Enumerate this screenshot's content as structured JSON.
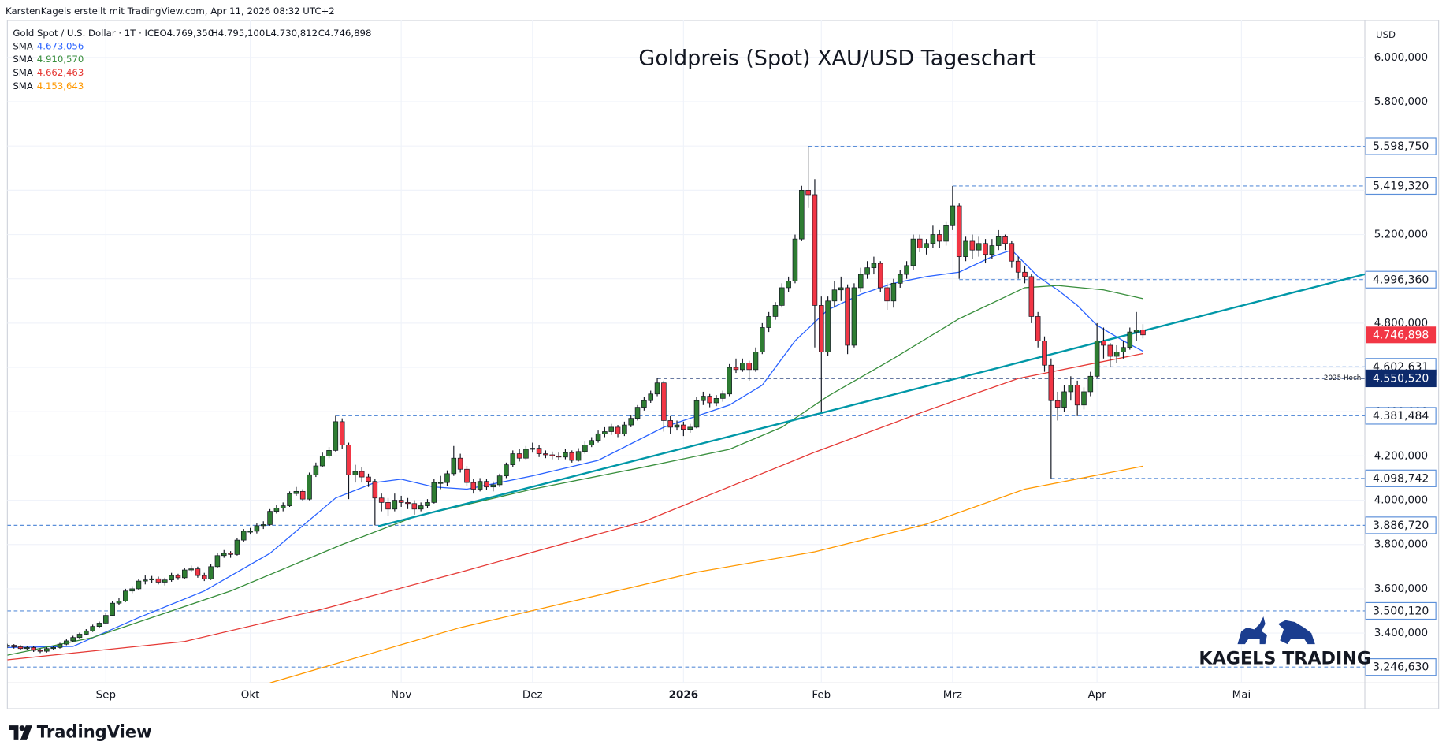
{
  "chart_data": {
    "type": "candlestick",
    "title": "Goldpreis (Spot) XAU/USD Tageschart",
    "watermark": "KarstenKagels erstellt mit TradingView.com, Apr 11, 2026 08:32 UTC+2",
    "symbol": "Gold Spot / U.S. Dollar · 1T · ICE",
    "ohlc_header": [
      {
        "value": 4769.35,
        "label": "O4.769,350"
      },
      {
        "value": 4795.1,
        "label": "H4.795,100"
      },
      {
        "value": 4730.812,
        "label": "L4.730,812"
      },
      {
        "value": 4746.898,
        "label": "C4.746,898"
      }
    ],
    "currency": "USD",
    "branding": "TradingView",
    "logo_text": "KAGELS TRADING",
    "grid": true,
    "up_color": "#2e7d32",
    "down_color": "#f23645",
    "xlim": [
      0,
      206.8
    ],
    "xticks": [
      {
        "value": 15,
        "label": "Sep"
      },
      {
        "value": 37,
        "label": "Okt"
      },
      {
        "value": 60,
        "label": "Nov"
      },
      {
        "value": 80,
        "label": "Dez"
      },
      {
        "value": 103,
        "label": "2026",
        "bold": true
      },
      {
        "value": 124,
        "label": "Feb"
      },
      {
        "value": 144,
        "label": "Mrz"
      },
      {
        "value": 166,
        "label": "Apr"
      },
      {
        "value": 188,
        "label": "Mai"
      }
    ],
    "ylim": [
      3175,
      6166.7
    ],
    "yticks": [
      {
        "value": 6000,
        "label": "6.000,000"
      },
      {
        "value": 5800,
        "label": "5.800,000"
      },
      {
        "value": 5600,
        "label": "5.600,000"
      },
      {
        "value": 5400,
        "label": "5.400,000"
      },
      {
        "value": 5200,
        "label": "5.200,000"
      },
      {
        "value": 5000,
        "label": "5.000,000"
      },
      {
        "value": 4800,
        "label": "4.800,000"
      },
      {
        "value": 4600,
        "label": "4.600,000"
      },
      {
        "value": 4400,
        "label": "4.400,000"
      },
      {
        "value": 4200,
        "label": "4.200,000"
      },
      {
        "value": 4000,
        "label": "4.000,000"
      },
      {
        "value": 3800,
        "label": "3.800,000"
      },
      {
        "value": 3600,
        "label": "3.600,000"
      },
      {
        "value": 3400,
        "label": "3.400,000"
      }
    ],
    "ohlc": [
      [
        3340,
        3352,
        3332,
        3345
      ],
      [
        3345,
        3350,
        3330,
        3338
      ],
      [
        3338,
        3345,
        3322,
        3330
      ],
      [
        3330,
        3342,
        3325,
        3335
      ],
      [
        3335,
        3340,
        3315,
        3322
      ],
      [
        3322,
        3330,
        3310,
        3318
      ],
      [
        3318,
        3336,
        3312,
        3330
      ],
      [
        3330,
        3342,
        3325,
        3335
      ],
      [
        3335,
        3356,
        3330,
        3350
      ],
      [
        3350,
        3372,
        3345,
        3365
      ],
      [
        3365,
        3388,
        3360,
        3380
      ],
      [
        3380,
        3402,
        3372,
        3395
      ],
      [
        3395,
        3418,
        3390,
        3410
      ],
      [
        3410,
        3438,
        3405,
        3430
      ],
      [
        3430,
        3452,
        3422,
        3445
      ],
      [
        3445,
        3490,
        3440,
        3480
      ],
      [
        3480,
        3545,
        3475,
        3535
      ],
      [
        3535,
        3560,
        3525,
        3545
      ],
      [
        3545,
        3600,
        3540,
        3590
      ],
      [
        3590,
        3612,
        3580,
        3600
      ],
      [
        3600,
        3645,
        3595,
        3635
      ],
      [
        3635,
        3660,
        3620,
        3640
      ],
      [
        3640,
        3658,
        3625,
        3645
      ],
      [
        3645,
        3655,
        3620,
        3630
      ],
      [
        3630,
        3650,
        3615,
        3640
      ],
      [
        3640,
        3672,
        3632,
        3660
      ],
      [
        3660,
        3668,
        3640,
        3650
      ],
      [
        3650,
        3695,
        3645,
        3685
      ],
      [
        3685,
        3705,
        3675,
        3690
      ],
      [
        3690,
        3700,
        3650,
        3660
      ],
      [
        3660,
        3672,
        3635,
        3645
      ],
      [
        3645,
        3710,
        3640,
        3700
      ],
      [
        3700,
        3760,
        3695,
        3750
      ],
      [
        3750,
        3775,
        3740,
        3760
      ],
      [
        3760,
        3770,
        3740,
        3755
      ],
      [
        3755,
        3830,
        3750,
        3820
      ],
      [
        3820,
        3870,
        3812,
        3860
      ],
      [
        3860,
        3875,
        3845,
        3860
      ],
      [
        3860,
        3895,
        3850,
        3885
      ],
      [
        3885,
        3905,
        3870,
        3890
      ],
      [
        3890,
        3960,
        3885,
        3950
      ],
      [
        3950,
        3980,
        3940,
        3965
      ],
      [
        3965,
        3990,
        3950,
        3975
      ],
      [
        3975,
        4040,
        3970,
        4030
      ],
      [
        4030,
        4060,
        4020,
        4040
      ],
      [
        4040,
        4050,
        3995,
        4005
      ],
      [
        4005,
        4125,
        4000,
        4115
      ],
      [
        4115,
        4170,
        4105,
        4155
      ],
      [
        4155,
        4215,
        4150,
        4200
      ],
      [
        4200,
        4240,
        4190,
        4225
      ],
      [
        4225,
        4381.484,
        4220,
        4355
      ],
      [
        4355,
        4370,
        4230,
        4250
      ],
      [
        4250,
        4260,
        4005,
        4115
      ],
      [
        4115,
        4160,
        4080,
        4130
      ],
      [
        4130,
        4150,
        4080,
        4105
      ],
      [
        4105,
        4120,
        4060,
        4085
      ],
      [
        4085,
        4095,
        3886.72,
        4010
      ],
      [
        4010,
        4030,
        3950,
        3990
      ],
      [
        3990,
        4010,
        3930,
        3960
      ],
      [
        3960,
        4030,
        3950,
        4000
      ],
      [
        4000,
        4020,
        3970,
        3990
      ],
      [
        3990,
        4010,
        3960,
        3985
      ],
      [
        3985,
        4000,
        3935,
        3960
      ],
      [
        3960,
        3990,
        3950,
        3975
      ],
      [
        3975,
        4005,
        3965,
        3990
      ],
      [
        3990,
        4095,
        3985,
        4080
      ],
      [
        4080,
        4110,
        4050,
        4080
      ],
      [
        4080,
        4135,
        4065,
        4120
      ],
      [
        4120,
        4245,
        4110,
        4190
      ],
      [
        4190,
        4210,
        4125,
        4140
      ],
      [
        4140,
        4155,
        4065,
        4080
      ],
      [
        4080,
        4095,
        4030,
        4050
      ],
      [
        4050,
        4100,
        4040,
        4085
      ],
      [
        4085,
        4095,
        4045,
        4060
      ],
      [
        4060,
        4085,
        4040,
        4070
      ],
      [
        4070,
        4120,
        4060,
        4110
      ],
      [
        4110,
        4170,
        4100,
        4160
      ],
      [
        4160,
        4225,
        4150,
        4210
      ],
      [
        4210,
        4230,
        4175,
        4190
      ],
      [
        4190,
        4245,
        4180,
        4230
      ],
      [
        4230,
        4260,
        4215,
        4235
      ],
      [
        4235,
        4250,
        4195,
        4210
      ],
      [
        4210,
        4225,
        4190,
        4205
      ],
      [
        4205,
        4220,
        4185,
        4200
      ],
      [
        4200,
        4215,
        4180,
        4195
      ],
      [
        4195,
        4230,
        4185,
        4215
      ],
      [
        4215,
        4225,
        4170,
        4180
      ],
      [
        4180,
        4235,
        4175,
        4220
      ],
      [
        4220,
        4265,
        4210,
        4250
      ],
      [
        4250,
        4285,
        4240,
        4270
      ],
      [
        4270,
        4315,
        4260,
        4300
      ],
      [
        4300,
        4330,
        4285,
        4310
      ],
      [
        4310,
        4345,
        4295,
        4330
      ],
      [
        4330,
        4340,
        4285,
        4300
      ],
      [
        4300,
        4355,
        4290,
        4340
      ],
      [
        4340,
        4385,
        4330,
        4370
      ],
      [
        4370,
        4430,
        4360,
        4420
      ],
      [
        4420,
        4465,
        4405,
        4450
      ],
      [
        4450,
        4495,
        4440,
        4480
      ],
      [
        4480,
        4550.52,
        4470,
        4530
      ],
      [
        4530,
        4540,
        4310,
        4360
      ],
      [
        4360,
        4380,
        4300,
        4330
      ],
      [
        4330,
        4360,
        4315,
        4340
      ],
      [
        4340,
        4355,
        4290,
        4320
      ],
      [
        4320,
        4345,
        4305,
        4330
      ],
      [
        4330,
        4465,
        4325,
        4450
      ],
      [
        4450,
        4490,
        4430,
        4470
      ],
      [
        4470,
        4480,
        4420,
        4440
      ],
      [
        4440,
        4475,
        4425,
        4460
      ],
      [
        4460,
        4495,
        4445,
        4480
      ],
      [
        4480,
        4615,
        4470,
        4600
      ],
      [
        4600,
        4640,
        4575,
        4590
      ],
      [
        4590,
        4640,
        4580,
        4620
      ],
      [
        4620,
        4630,
        4540,
        4590
      ],
      [
        4590,
        4690,
        4580,
        4670
      ],
      [
        4670,
        4800,
        4660,
        4780
      ],
      [
        4780,
        4850,
        4760,
        4830
      ],
      [
        4830,
        4895,
        4815,
        4880
      ],
      [
        4880,
        4980,
        4870,
        4960
      ],
      [
        4960,
        5010,
        4940,
        4990
      ],
      [
        4990,
        5200,
        4980,
        5180
      ],
      [
        5180,
        5420,
        5170,
        5400
      ],
      [
        5400,
        5598.75,
        5320,
        5380
      ],
      [
        5380,
        5450,
        4690,
        4880
      ],
      [
        4880,
        4920,
        4400,
        4670
      ],
      [
        4670,
        4920,
        4650,
        4900
      ],
      [
        4900,
        4990,
        4870,
        4950
      ],
      [
        4950,
        5010,
        4900,
        4960
      ],
      [
        4960,
        4975,
        4660,
        4700
      ],
      [
        4700,
        4980,
        4690,
        4960
      ],
      [
        4960,
        5050,
        4940,
        5020
      ],
      [
        5020,
        5080,
        5000,
        5050
      ],
      [
        5050,
        5100,
        5020,
        5070
      ],
      [
        5070,
        5080,
        4940,
        4960
      ],
      [
        4960,
        4980,
        4860,
        4900
      ],
      [
        4900,
        5000,
        4870,
        4980
      ],
      [
        4980,
        5040,
        4960,
        5020
      ],
      [
        5020,
        5080,
        5000,
        5060
      ],
      [
        5060,
        5200,
        5040,
        5180
      ],
      [
        5180,
        5200,
        5120,
        5140
      ],
      [
        5140,
        5180,
        5110,
        5160
      ],
      [
        5160,
        5240,
        5140,
        5200
      ],
      [
        5200,
        5220,
        5140,
        5170
      ],
      [
        5170,
        5260,
        5150,
        5240
      ],
      [
        5240,
        5419.32,
        5220,
        5330
      ],
      [
        5330,
        5340,
        5000,
        5100
      ],
      [
        5100,
        5190,
        5080,
        5170
      ],
      [
        5170,
        5200,
        5090,
        5130
      ],
      [
        5130,
        5190,
        5100,
        5160
      ],
      [
        5160,
        5180,
        5070,
        5110
      ],
      [
        5110,
        5180,
        5090,
        5150
      ],
      [
        5150,
        5220,
        5130,
        5190
      ],
      [
        5190,
        5200,
        5130,
        5160
      ],
      [
        5160,
        5170,
        5050,
        5080
      ],
      [
        5080,
        5100,
        5000,
        5030
      ],
      [
        5030,
        5060,
        4980,
        5010
      ],
      [
        5010,
        5020,
        4800,
        4830
      ],
      [
        4830,
        4850,
        4690,
        4720
      ],
      [
        4720,
        4740,
        4580,
        4610
      ],
      [
        4610,
        4640,
        4098.742,
        4450
      ],
      [
        4450,
        4490,
        4360,
        4420
      ],
      [
        4420,
        4520,
        4400,
        4490
      ],
      [
        4490,
        4560,
        4450,
        4520
      ],
      [
        4520,
        4540,
        4380,
        4430
      ],
      [
        4430,
        4510,
        4410,
        4490
      ],
      [
        4490,
        4580,
        4470,
        4560
      ],
      [
        4560,
        4800,
        4550,
        4720
      ],
      [
        4720,
        4780,
        4640,
        4700
      ],
      [
        4700,
        4710,
        4600,
        4650
      ],
      [
        4650,
        4700,
        4620,
        4670
      ],
      [
        4670,
        4720,
        4640,
        4690
      ],
      [
        4690,
        4780,
        4680,
        4760
      ],
      [
        4760,
        4850,
        4720,
        4769.35
      ],
      [
        4769.35,
        4795.1,
        4730.812,
        4746.898
      ]
    ],
    "sma": [
      {
        "name": "SMA",
        "color": "#2962ff",
        "legend": {
          "value": 4673.056,
          "label": "4.673,056"
        },
        "x": [
          0,
          10,
          20,
          30,
          40,
          50,
          56,
          60,
          65,
          70,
          80,
          90,
          100,
          110,
          115,
          120,
          125,
          130,
          135,
          140,
          145,
          150,
          153,
          157,
          160,
          163,
          166,
          170,
          173
        ],
        "values": [
          3335,
          3340,
          3470,
          3590,
          3760,
          4010,
          4080,
          4095,
          4060,
          4050,
          4110,
          4180,
          4330,
          4430,
          4520,
          4720,
          4860,
          4930,
          4980,
          5010,
          5030,
          5100,
          5130,
          5010,
          4950,
          4880,
          4790,
          4720,
          4673.056
        ]
      },
      {
        "name": "SMA",
        "color": "#388e3c",
        "legend": {
          "value": 4910.57,
          "label": "4.910,570"
        },
        "x": [
          0,
          13,
          34,
          51,
          62,
          80,
          97,
          110,
          118,
          125,
          135,
          145,
          155,
          160,
          167,
          173
        ],
        "values": [
          3300,
          3380,
          3590,
          3800,
          3925,
          4050,
          4150,
          4230,
          4330,
          4470,
          4640,
          4820,
          4960,
          4970,
          4950,
          4910.57
        ]
      },
      {
        "name": "SMA",
        "color": "#e53935",
        "legend": {
          "value": 4662.463,
          "label": "4.662,463"
        },
        "x": [
          0,
          27,
          48,
          69,
          97,
          123,
          140,
          154,
          173
        ],
        "values": [
          3279,
          3362,
          3508,
          3675,
          3904,
          4217,
          4404,
          4550,
          4662.463
        ]
      },
      {
        "name": "SMA",
        "color": "#ff9800",
        "legend": {
          "value": 4153.643,
          "label": "4.153,643"
        },
        "x": [
          40,
          69,
          105,
          123,
          140,
          155,
          173
        ],
        "values": [
          3175,
          3425,
          3675,
          3767,
          3892,
          4050,
          4153.643
        ]
      }
    ],
    "trendline": {
      "color": "#0097a7",
      "x": [
        56.5,
        206.8
      ],
      "values": [
        3883,
        5021
      ]
    },
    "levels": [
      {
        "value": 5598.75,
        "label": "5.598,750",
        "x": 122,
        "color": "#5b8fd9"
      },
      {
        "value": 5419.32,
        "label": "5.419,320",
        "x": 144,
        "color": "#5b8fd9"
      },
      {
        "value": 4996.36,
        "label": "4.996,360",
        "x": 145,
        "color": "#5b8fd9"
      },
      {
        "value": 4602.631,
        "label": "4.602,631",
        "x": 166,
        "color": "#5b8fd9"
      },
      {
        "value": 4550.52,
        "label": "4.550,520",
        "x": 99,
        "color": "#0d2a6b",
        "annotation": "2025 Hoch",
        "filled": true
      },
      {
        "value": 4381.484,
        "label": "4.381,484",
        "x": 50,
        "color": "#5b8fd9"
      },
      {
        "value": 4098.742,
        "label": "4.098,742",
        "x": 159,
        "color": "#5b8fd9"
      },
      {
        "value": 3886.72,
        "label": "3.886,720",
        "x": 0,
        "color": "#5b8fd9"
      },
      {
        "value": 3500.12,
        "label": "3.500,120",
        "x": 0,
        "color": "#5b8fd9"
      },
      {
        "value": 3246.63,
        "label": "3.246,630",
        "x": 0,
        "color": "#5b8fd9"
      }
    ],
    "last_price": {
      "value": 4746.898,
      "label": "4.746,898",
      "color": "#f23645"
    }
  }
}
